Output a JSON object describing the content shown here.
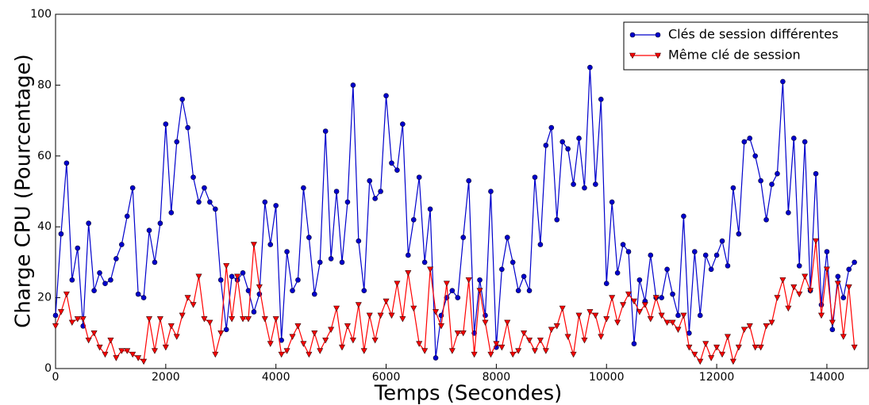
{
  "chart_data": {
    "type": "line",
    "x_label": "Temps (Secondes)",
    "y_label": "Charge CPU (Pourcentage)",
    "x": [
      0,
      100,
      200,
      300,
      400,
      500,
      600,
      700,
      800,
      900,
      1000,
      1100,
      1200,
      1300,
      1400,
      1500,
      1600,
      1700,
      1800,
      1900,
      2000,
      2100,
      2200,
      2300,
      2400,
      2500,
      2600,
      2700,
      2800,
      2900,
      3000,
      3100,
      3200,
      3300,
      3400,
      3500,
      3600,
      3700,
      3800,
      3900,
      4000,
      4100,
      4200,
      4300,
      4400,
      4500,
      4600,
      4700,
      4800,
      4900,
      5000,
      5100,
      5200,
      5300,
      5400,
      5500,
      5600,
      5700,
      5800,
      5900,
      6000,
      6100,
      6200,
      6300,
      6400,
      6500,
      6600,
      6700,
      6800,
      6900,
      7000,
      7100,
      7200,
      7300,
      7400,
      7500,
      7600,
      7700,
      7800,
      7900,
      8000,
      8100,
      8200,
      8300,
      8400,
      8500,
      8600,
      8700,
      8800,
      8900,
      9000,
      9100,
      9200,
      9300,
      9400,
      9500,
      9600,
      9700,
      9800,
      9900,
      10000,
      10100,
      10200,
      10300,
      10400,
      10500,
      10600,
      10700,
      10800,
      10900,
      11000,
      11100,
      11200,
      11300,
      11400,
      11500,
      11600,
      11700,
      11800,
      11900,
      12000,
      12100,
      12200,
      12300,
      12400,
      12500,
      12600,
      12700,
      12800,
      12900,
      13000,
      13100,
      13200,
      13300,
      13400,
      13500,
      13600,
      13700,
      13800,
      13900,
      14000,
      14100,
      14200,
      14300,
      14400,
      14500
    ],
    "series": [
      {
        "name": "Clés de session différentes",
        "color": "#0000cc",
        "marker": "circle",
        "values": [
          15,
          38,
          58,
          25,
          34,
          12,
          41,
          22,
          27,
          24,
          25,
          31,
          35,
          43,
          51,
          21,
          20,
          39,
          30,
          41,
          69,
          44,
          64,
          76,
          68,
          54,
          47,
          51,
          47,
          45,
          25,
          11,
          26,
          25,
          27,
          22,
          16,
          21,
          47,
          35,
          46,
          8,
          33,
          22,
          25,
          51,
          37,
          21,
          30,
          67,
          31,
          50,
          30,
          47,
          80,
          36,
          22,
          53,
          48,
          50,
          77,
          58,
          56,
          69,
          32,
          42,
          54,
          30,
          45,
          3,
          15,
          20,
          22,
          20,
          37,
          53,
          10,
          25,
          15,
          50,
          6,
          28,
          37,
          30,
          22,
          26,
          22,
          54,
          35,
          63,
          68,
          42,
          64,
          62,
          52,
          65,
          51,
          85,
          52,
          76,
          24,
          47,
          27,
          35,
          33,
          7,
          25,
          19,
          32,
          20,
          20,
          28,
          21,
          15,
          43,
          10,
          33,
          15,
          32,
          28,
          32,
          36,
          29,
          51,
          38,
          64,
          65,
          60,
          53,
          42,
          52,
          55,
          81,
          44,
          65,
          29,
          64,
          22,
          55,
          18,
          33,
          11,
          26,
          20,
          28,
          30
        ]
      },
      {
        "name": "Même clé de session",
        "color": "#ff0000",
        "marker": "triangle-down",
        "values": [
          12,
          16,
          21,
          13,
          14,
          14,
          8,
          10,
          6,
          4,
          8,
          3,
          5,
          5,
          4,
          3,
          2,
          14,
          5,
          14,
          6,
          12,
          9,
          15,
          20,
          18,
          26,
          14,
          13,
          4,
          10,
          29,
          14,
          26,
          14,
          14,
          35,
          23,
          14,
          7,
          14,
          4,
          5,
          9,
          12,
          7,
          4,
          10,
          5,
          8,
          11,
          17,
          6,
          12,
          8,
          18,
          5,
          15,
          8,
          15,
          19,
          15,
          24,
          14,
          27,
          17,
          7,
          5,
          28,
          16,
          12,
          24,
          5,
          10,
          10,
          25,
          4,
          22,
          13,
          4,
          7,
          6,
          13,
          4,
          5,
          10,
          8,
          5,
          8,
          5,
          11,
          12,
          17,
          9,
          4,
          15,
          8,
          16,
          15,
          9,
          14,
          20,
          13,
          18,
          21,
          19,
          16,
          18,
          14,
          20,
          15,
          13,
          13,
          11,
          15,
          6,
          4,
          2,
          7,
          3,
          6,
          4,
          9,
          2,
          6,
          11,
          12,
          6,
          6,
          12,
          13,
          20,
          25,
          17,
          23,
          21,
          26,
          22,
          36,
          15,
          28,
          13,
          24,
          9,
          23,
          6
        ]
      }
    ],
    "xlim": [
      0,
      14750
    ],
    "ylim": [
      0,
      100
    ],
    "xticks": [
      0,
      2000,
      4000,
      6000,
      8000,
      10000,
      12000,
      14000
    ],
    "yticks": [
      0,
      20,
      40,
      60,
      80,
      100
    ],
    "grid": false,
    "legend": "upper right"
  }
}
